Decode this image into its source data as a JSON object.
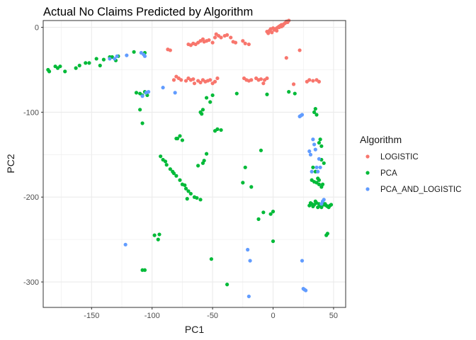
{
  "chart_data": {
    "type": "scatter",
    "title": "Actual No Claims Predicted by Algorithm",
    "xlabel": "PC1",
    "ylabel": "PC2",
    "xlim": [
      -190,
      60
    ],
    "ylim": [
      -330,
      8
    ],
    "xticks": [
      -150,
      -100,
      -50,
      0,
      50
    ],
    "yticks": [
      0,
      -100,
      -200,
      -300
    ],
    "grid": true,
    "legend_position": "right",
    "legend_title": "Algorithm",
    "series": [
      {
        "name": "LOGISTIC",
        "color": "#F8766D",
        "points": [
          [
            -87,
            -26
          ],
          [
            -85,
            -27
          ],
          [
            -70,
            -20
          ],
          [
            -68,
            -21
          ],
          [
            -66,
            -19
          ],
          [
            -64,
            -20
          ],
          [
            -62,
            -18
          ],
          [
            -60,
            -16
          ],
          [
            -58,
            -14
          ],
          [
            -57,
            -17
          ],
          [
            -55,
            -16
          ],
          [
            -53,
            -15
          ],
          [
            -50,
            -18
          ],
          [
            -48,
            -12
          ],
          [
            -47,
            -8
          ],
          [
            -45,
            -10
          ],
          [
            -43,
            -12
          ],
          [
            -40,
            -10
          ],
          [
            -38,
            -9
          ],
          [
            -35,
            -12
          ],
          [
            -33,
            -17
          ],
          [
            -31,
            -18
          ],
          [
            -25,
            -16
          ],
          [
            -23,
            -19
          ],
          [
            -20,
            -20
          ],
          [
            -82,
            -62
          ],
          [
            -80,
            -58
          ],
          [
            -78,
            -60
          ],
          [
            -76,
            -62
          ],
          [
            -72,
            -63
          ],
          [
            -70,
            -60
          ],
          [
            -68,
            -62
          ],
          [
            -66,
            -61
          ],
          [
            -65,
            -66
          ],
          [
            -62,
            -63
          ],
          [
            -60,
            -65
          ],
          [
            -58,
            -62
          ],
          [
            -56,
            -64
          ],
          [
            -54,
            -63
          ],
          [
            -52,
            -62
          ],
          [
            -50,
            -66
          ],
          [
            -48,
            -64
          ],
          [
            -46,
            -60
          ],
          [
            -24,
            -60
          ],
          [
            -22,
            -62
          ],
          [
            -20,
            -63
          ],
          [
            -18,
            -62
          ],
          [
            -14,
            -60
          ],
          [
            -12,
            -62
          ],
          [
            -10,
            -61
          ],
          [
            -8,
            -66
          ],
          [
            -7,
            -62
          ],
          [
            -5,
            -60
          ],
          [
            -5,
            -5
          ],
          [
            -4,
            -7
          ],
          [
            -3,
            -4
          ],
          [
            -2,
            -2
          ],
          [
            -1,
            -6
          ],
          [
            0,
            -1
          ],
          [
            1,
            -3
          ],
          [
            2,
            -2
          ],
          [
            3,
            -1
          ],
          [
            4,
            0
          ],
          [
            5,
            1
          ],
          [
            6,
            2
          ],
          [
            7,
            3
          ],
          [
            8,
            2
          ],
          [
            9,
            4
          ],
          [
            10,
            5
          ],
          [
            11,
            7
          ],
          [
            12,
            6
          ],
          [
            13,
            8
          ],
          [
            3,
            -4
          ],
          [
            5,
            0
          ],
          [
            7,
            1
          ],
          [
            11,
            -36
          ],
          [
            22,
            -27
          ],
          [
            28,
            -64
          ],
          [
            30,
            -62
          ],
          [
            33,
            -63
          ],
          [
            36,
            -62
          ],
          [
            38,
            -64
          ],
          [
            17,
            -67
          ]
        ]
      },
      {
        "name": "PCA",
        "color": "#00BA38",
        "points": [
          [
            -186,
            -50
          ],
          [
            -185,
            -52
          ],
          [
            -180,
            -46
          ],
          [
            -178,
            -48
          ],
          [
            -176,
            -46
          ],
          [
            -172,
            -52
          ],
          [
            -163,
            -48
          ],
          [
            -160,
            -45
          ],
          [
            -155,
            -42
          ],
          [
            -152,
            -42
          ],
          [
            -146,
            -37
          ],
          [
            -143,
            -45
          ],
          [
            -140,
            -38
          ],
          [
            -135,
            -35
          ],
          [
            -133,
            -35
          ],
          [
            -128,
            -34
          ],
          [
            -115,
            -29
          ],
          [
            -106,
            -30
          ],
          [
            -130,
            -39
          ],
          [
            -113,
            -77
          ],
          [
            -110,
            -78
          ],
          [
            -108,
            -80
          ],
          [
            -106,
            -76
          ],
          [
            -104,
            -80
          ],
          [
            -110,
            -97
          ],
          [
            -108,
            -113
          ],
          [
            -95,
            -250
          ],
          [
            -93,
            -152
          ],
          [
            -91,
            -156
          ],
          [
            -89,
            -158
          ],
          [
            -88,
            -162
          ],
          [
            -85,
            -167
          ],
          [
            -83,
            -170
          ],
          [
            -82,
            -172
          ],
          [
            -80,
            -175
          ],
          [
            -77,
            -180
          ],
          [
            -75,
            -185
          ],
          [
            -73,
            -186
          ],
          [
            -72,
            -190
          ],
          [
            -70,
            -193
          ],
          [
            -68,
            -196
          ],
          [
            -65,
            -200
          ],
          [
            -63,
            -201
          ],
          [
            -60,
            -203
          ],
          [
            -58,
            -160
          ],
          [
            -57,
            -157
          ],
          [
            -55,
            -149
          ],
          [
            -80,
            -131
          ],
          [
            -79,
            -131
          ],
          [
            -77,
            -128
          ],
          [
            -75,
            -133
          ],
          [
            -62,
            -163
          ],
          [
            -60,
            -100
          ],
          [
            -59,
            -102
          ],
          [
            -58,
            -97
          ],
          [
            -55,
            -83
          ],
          [
            -52,
            -88
          ],
          [
            -50,
            -80
          ],
          [
            -48,
            -122
          ],
          [
            -46,
            -120
          ],
          [
            -43,
            -121
          ],
          [
            -98,
            -245
          ],
          [
            -94,
            -244
          ],
          [
            -108,
            -286
          ],
          [
            -106,
            -286
          ],
          [
            -71,
            -202
          ],
          [
            -51,
            -273
          ],
          [
            -38,
            -303
          ],
          [
            -30,
            -78
          ],
          [
            -25,
            -183
          ],
          [
            -23,
            -165
          ],
          [
            -18,
            -188
          ],
          [
            -12,
            -226
          ],
          [
            -10,
            -145
          ],
          [
            -8,
            -218
          ],
          [
            -5,
            -79
          ],
          [
            -2,
            -220
          ],
          [
            0,
            -217
          ],
          [
            0,
            -252
          ],
          [
            13,
            -76
          ],
          [
            18,
            -78
          ],
          [
            30,
            -210
          ],
          [
            31,
            -207
          ],
          [
            32,
            -208
          ],
          [
            33,
            -211
          ],
          [
            34,
            -209
          ],
          [
            35,
            -205
          ],
          [
            36,
            -207
          ],
          [
            37,
            -212
          ],
          [
            38,
            -208
          ],
          [
            39,
            -210
          ],
          [
            40,
            -212
          ],
          [
            41,
            -206
          ],
          [
            42,
            -209
          ],
          [
            43,
            -208
          ],
          [
            44,
            -210
          ],
          [
            45,
            -211
          ],
          [
            46,
            -212
          ],
          [
            47,
            -210
          ],
          [
            48,
            -209
          ],
          [
            35,
            -96
          ],
          [
            34,
            -100
          ],
          [
            36,
            -103
          ],
          [
            38,
            -136
          ],
          [
            40,
            -140
          ],
          [
            39,
            -132
          ],
          [
            32,
            -180
          ],
          [
            34,
            -182
          ],
          [
            36,
            -183
          ],
          [
            38,
            -180
          ],
          [
            40,
            -188
          ],
          [
            41,
            -185
          ],
          [
            33,
            -165
          ],
          [
            35,
            -170
          ],
          [
            37,
            -178
          ],
          [
            38,
            -185
          ],
          [
            40,
            -156
          ],
          [
            42,
            -160
          ],
          [
            44,
            -245
          ],
          [
            45,
            -243
          ]
        ]
      },
      {
        "name": "PCA_AND_LOGISTIC",
        "color": "#619CFF",
        "points": [
          [
            -135,
            -37
          ],
          [
            -131,
            -37
          ],
          [
            -129,
            -34
          ],
          [
            -121,
            -33
          ],
          [
            -109,
            -30
          ],
          [
            -107,
            -32
          ],
          [
            -106,
            -34
          ],
          [
            -108,
            -81
          ],
          [
            -105,
            -77
          ],
          [
            -103,
            -76
          ],
          [
            -91,
            -71
          ],
          [
            -81,
            -77
          ],
          [
            -122,
            -256
          ],
          [
            -21,
            -262
          ],
          [
            -20,
            -317
          ],
          [
            -19,
            -275
          ],
          [
            22,
            -105
          ],
          [
            23,
            -104
          ],
          [
            24,
            -103
          ],
          [
            24,
            -275
          ],
          [
            25,
            -308
          ],
          [
            26,
            -309
          ],
          [
            27,
            -310
          ],
          [
            30,
            -146
          ],
          [
            31,
            -150
          ],
          [
            32,
            -170
          ],
          [
            33,
            -132
          ],
          [
            34,
            -138
          ],
          [
            35,
            -144
          ],
          [
            36,
            -165
          ],
          [
            37,
            -170
          ],
          [
            38,
            -155
          ],
          [
            39,
            -165
          ],
          [
            40,
            -208
          ],
          [
            41,
            -205
          ],
          [
            42,
            -203
          ]
        ]
      }
    ]
  }
}
